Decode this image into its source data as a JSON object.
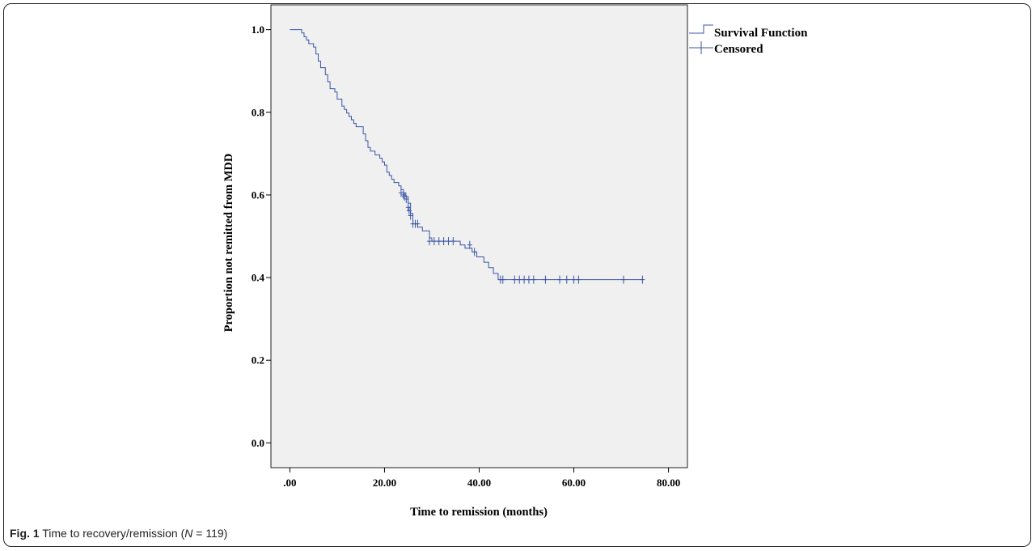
{
  "figure": {
    "caption_label": "Fig. 1",
    "caption_text_before": " Time to recovery/remission (",
    "caption_italic": "N",
    "caption_text_after": " = 119)"
  },
  "chart_data": {
    "type": "line",
    "title": "",
    "xlabel": "Time to remission (months)",
    "ylabel": "Proportion not remitted from MDD",
    "xlim": [
      -4,
      84
    ],
    "ylim": [
      -0.06,
      1.06
    ],
    "x_ticks": [
      0,
      20,
      40,
      60,
      80
    ],
    "x_tick_labels": [
      ".00",
      "20.00",
      "40.00",
      "60.00",
      "80.00"
    ],
    "y_ticks": [
      0,
      0.2,
      0.4,
      0.6,
      0.8,
      1.0
    ],
    "y_tick_labels": [
      "0.0",
      "0.2",
      "0.4",
      "0.6",
      "0.8",
      "1.0"
    ],
    "grid": false,
    "legend_position": "top-right outside plot",
    "colors": {
      "line": "#3a55a4",
      "plot_background": "#f0f0f0"
    },
    "series": [
      {
        "name": "Survival Function",
        "style": "step",
        "points": [
          [
            0,
            1.0
          ],
          [
            2,
            1.0
          ],
          [
            2.5,
            0.992
          ],
          [
            3,
            0.983
          ],
          [
            3.5,
            0.975
          ],
          [
            4,
            0.966
          ],
          [
            5,
            0.958
          ],
          [
            5.5,
            0.941
          ],
          [
            6,
            0.924
          ],
          [
            6.5,
            0.908
          ],
          [
            7.5,
            0.891
          ],
          [
            8,
            0.874
          ],
          [
            8.5,
            0.857
          ],
          [
            9.5,
            0.849
          ],
          [
            10,
            0.832
          ],
          [
            11,
            0.815
          ],
          [
            11.5,
            0.807
          ],
          [
            12,
            0.798
          ],
          [
            12.5,
            0.79
          ],
          [
            13,
            0.782
          ],
          [
            13.5,
            0.773
          ],
          [
            14,
            0.765
          ],
          [
            15.5,
            0.748
          ],
          [
            16,
            0.731
          ],
          [
            16.5,
            0.715
          ],
          [
            17,
            0.706
          ],
          [
            18,
            0.697
          ],
          [
            19,
            0.689
          ],
          [
            19.5,
            0.68
          ],
          [
            20,
            0.672
          ],
          [
            20.5,
            0.655
          ],
          [
            21,
            0.647
          ],
          [
            21.5,
            0.638
          ],
          [
            22,
            0.63
          ],
          [
            23,
            0.622
          ],
          [
            23.5,
            0.613
          ],
          [
            24,
            0.605
          ],
          [
            24.5,
            0.596
          ],
          [
            25,
            0.58
          ],
          [
            25.5,
            0.555
          ],
          [
            26,
            0.53
          ],
          [
            27,
            0.522
          ],
          [
            28,
            0.513
          ],
          [
            29.5,
            0.496
          ],
          [
            30,
            0.488
          ],
          [
            36,
            0.479
          ],
          [
            37,
            0.471
          ],
          [
            38.5,
            0.462
          ],
          [
            39.5,
            0.45
          ],
          [
            41,
            0.437
          ],
          [
            42,
            0.424
          ],
          [
            43,
            0.41
          ],
          [
            44,
            0.395
          ],
          [
            74.5,
            0.395
          ]
        ]
      },
      {
        "name": "Censored",
        "style": "marker-plus",
        "points": [
          [
            23.5,
            0.605
          ],
          [
            24,
            0.6
          ],
          [
            24.2,
            0.596
          ],
          [
            24.6,
            0.59
          ],
          [
            25,
            0.57
          ],
          [
            25.2,
            0.562
          ],
          [
            25.5,
            0.55
          ],
          [
            26,
            0.53
          ],
          [
            26.5,
            0.53
          ],
          [
            27,
            0.53
          ],
          [
            29.5,
            0.488
          ],
          [
            30.5,
            0.488
          ],
          [
            31.5,
            0.488
          ],
          [
            32.5,
            0.488
          ],
          [
            33.5,
            0.488
          ],
          [
            34.5,
            0.488
          ],
          [
            38,
            0.479
          ],
          [
            39,
            0.462
          ],
          [
            44.5,
            0.395
          ],
          [
            45,
            0.395
          ],
          [
            47.5,
            0.395
          ],
          [
            48.5,
            0.395
          ],
          [
            49.5,
            0.395
          ],
          [
            50.5,
            0.395
          ],
          [
            51.5,
            0.395
          ],
          [
            54,
            0.395
          ],
          [
            57,
            0.395
          ],
          [
            58.5,
            0.395
          ],
          [
            60,
            0.395
          ],
          [
            61,
            0.395
          ],
          [
            70.5,
            0.395
          ],
          [
            74.5,
            0.395
          ]
        ]
      }
    ]
  }
}
